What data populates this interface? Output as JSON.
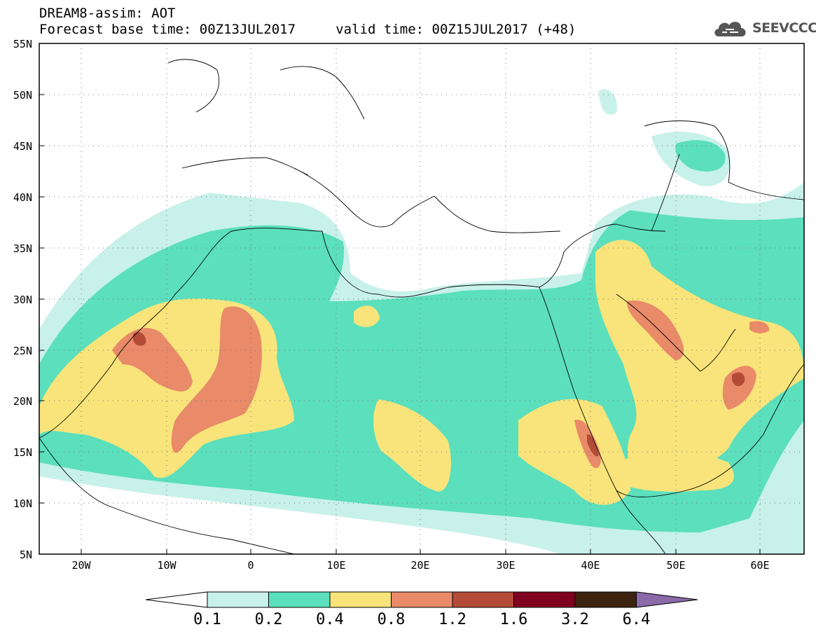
{
  "header": {
    "line1": "DREAM8-assim: AOT",
    "line2": "Forecast base time: 00Z13JUL2017     valid time: 00Z15JUL2017 (+48)"
  },
  "logo": {
    "text": "SEEVCCC",
    "icon": "cloud-logo-icon"
  },
  "map": {
    "lat_range": [
      5,
      55
    ],
    "lon_range": [
      -25,
      65
    ],
    "lat_labels": [
      "55N",
      "50N",
      "45N",
      "40N",
      "35N",
      "30N",
      "25N",
      "20N",
      "15N",
      "10N",
      "5N"
    ],
    "lon_labels": [
      "20W",
      "10W",
      "0",
      "10E",
      "20E",
      "30E",
      "40E",
      "50E",
      "60E"
    ],
    "grid": "dotted"
  },
  "colorbar": {
    "colors": [
      "#ffffff",
      "#c8f1ea",
      "#5bdfbd",
      "#f8e47a",
      "#e98a69",
      "#b34b36",
      "#800020",
      "#3d2410",
      "#8a6aa8"
    ],
    "labels": [
      "0.1",
      "0.2",
      "0.4",
      "0.8",
      "1.2",
      "1.6",
      "3.2",
      "6.4"
    ]
  }
}
